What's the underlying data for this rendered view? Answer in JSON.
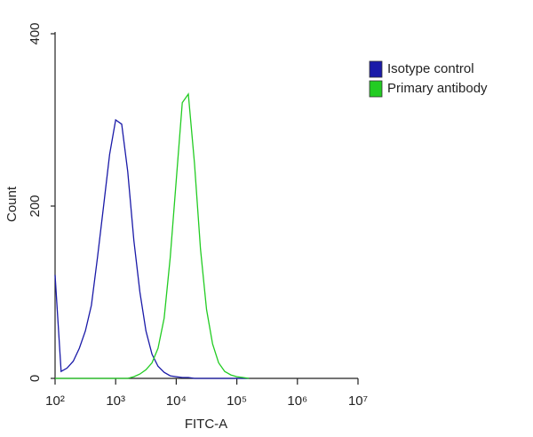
{
  "chart_data": {
    "type": "line",
    "x_label": "FITC-A",
    "y_label": "Count",
    "x": [
      100,
      126,
      158,
      200,
      251,
      316,
      398,
      501,
      631,
      794,
      1000,
      1259,
      1585,
      1995,
      2512,
      3162,
      3981,
      5012,
      6310,
      7943,
      10000,
      12589,
      15849,
      19953,
      25119,
      31623,
      39811,
      50119,
      63096,
      79433,
      100000,
      125893,
      158489
    ],
    "series": [
      {
        "name": "Isotype control",
        "color": "#1a1aa8",
        "values": [
          120,
          8,
          12,
          20,
          35,
          55,
          85,
          140,
          200,
          260,
          300,
          295,
          240,
          160,
          100,
          55,
          28,
          14,
          7,
          3,
          2,
          1,
          1,
          0,
          0,
          0,
          0,
          0,
          0,
          0,
          0,
          0,
          0
        ]
      },
      {
        "name": "Primary antibody",
        "color": "#22cc22",
        "values": [
          0,
          0,
          0,
          0,
          0,
          0,
          0,
          0,
          0,
          0,
          0,
          0,
          0,
          2,
          5,
          10,
          18,
          35,
          70,
          140,
          230,
          320,
          330,
          250,
          150,
          80,
          40,
          18,
          8,
          4,
          2,
          1,
          0
        ]
      }
    ],
    "x_log": true,
    "xlim": [
      100,
      10000000
    ],
    "xticks": [
      {
        "value": 100,
        "label": "10²"
      },
      {
        "value": 1000,
        "label": "10³"
      },
      {
        "value": 10000,
        "label": "10⁴"
      },
      {
        "value": 100000,
        "label": "10⁵"
      },
      {
        "value": 1000000,
        "label": "10⁶"
      },
      {
        "value": 10000000,
        "label": "10⁷"
      }
    ],
    "ylim": [
      0,
      400
    ],
    "yticks": [
      0,
      200,
      400
    ],
    "legend": "right"
  }
}
